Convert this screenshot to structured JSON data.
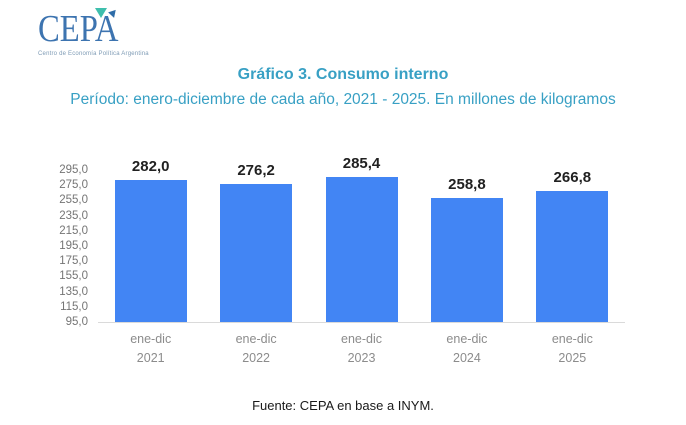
{
  "logo": {
    "text": "CEPA",
    "tagline": "Centro de Economía Política Argentina",
    "text_color": "#3D74B0",
    "mark_teal_color": "#3FBFAD",
    "mark_blue_color": "#2E6CA8"
  },
  "chart_data": {
    "type": "bar",
    "title": "Gráfico 3. Consumo interno",
    "subtitle": "Período: enero-diciembre de cada año, 2021 - 2025. En millones de kilogramos",
    "categories": [
      [
        "ene-dic",
        "2021"
      ],
      [
        "ene-dic",
        "2022"
      ],
      [
        "ene-dic",
        "2023"
      ],
      [
        "ene-dic",
        "2024"
      ],
      [
        "ene-dic",
        "2025"
      ]
    ],
    "values": [
      282.0,
      276.2,
      285.4,
      258.8,
      266.8
    ],
    "value_labels": [
      "282,0",
      "276,2",
      "285,4",
      "258,8",
      "266,8"
    ],
    "xlabel": "",
    "ylabel": "",
    "ylim": [
      95,
      295
    ],
    "ytick_step": 20,
    "decimal_separator": ",",
    "grid": false,
    "legend": "none",
    "title_color": "#38A0C4",
    "bar_color": "#4285F4",
    "axis_line_color": "#DADADA",
    "ytick_label_color": "#757575",
    "xtick_label_color": "#8C8C8C",
    "value_label_color": "#212121"
  },
  "footer": {
    "source": "Fuente: CEPA en base a INYM."
  }
}
